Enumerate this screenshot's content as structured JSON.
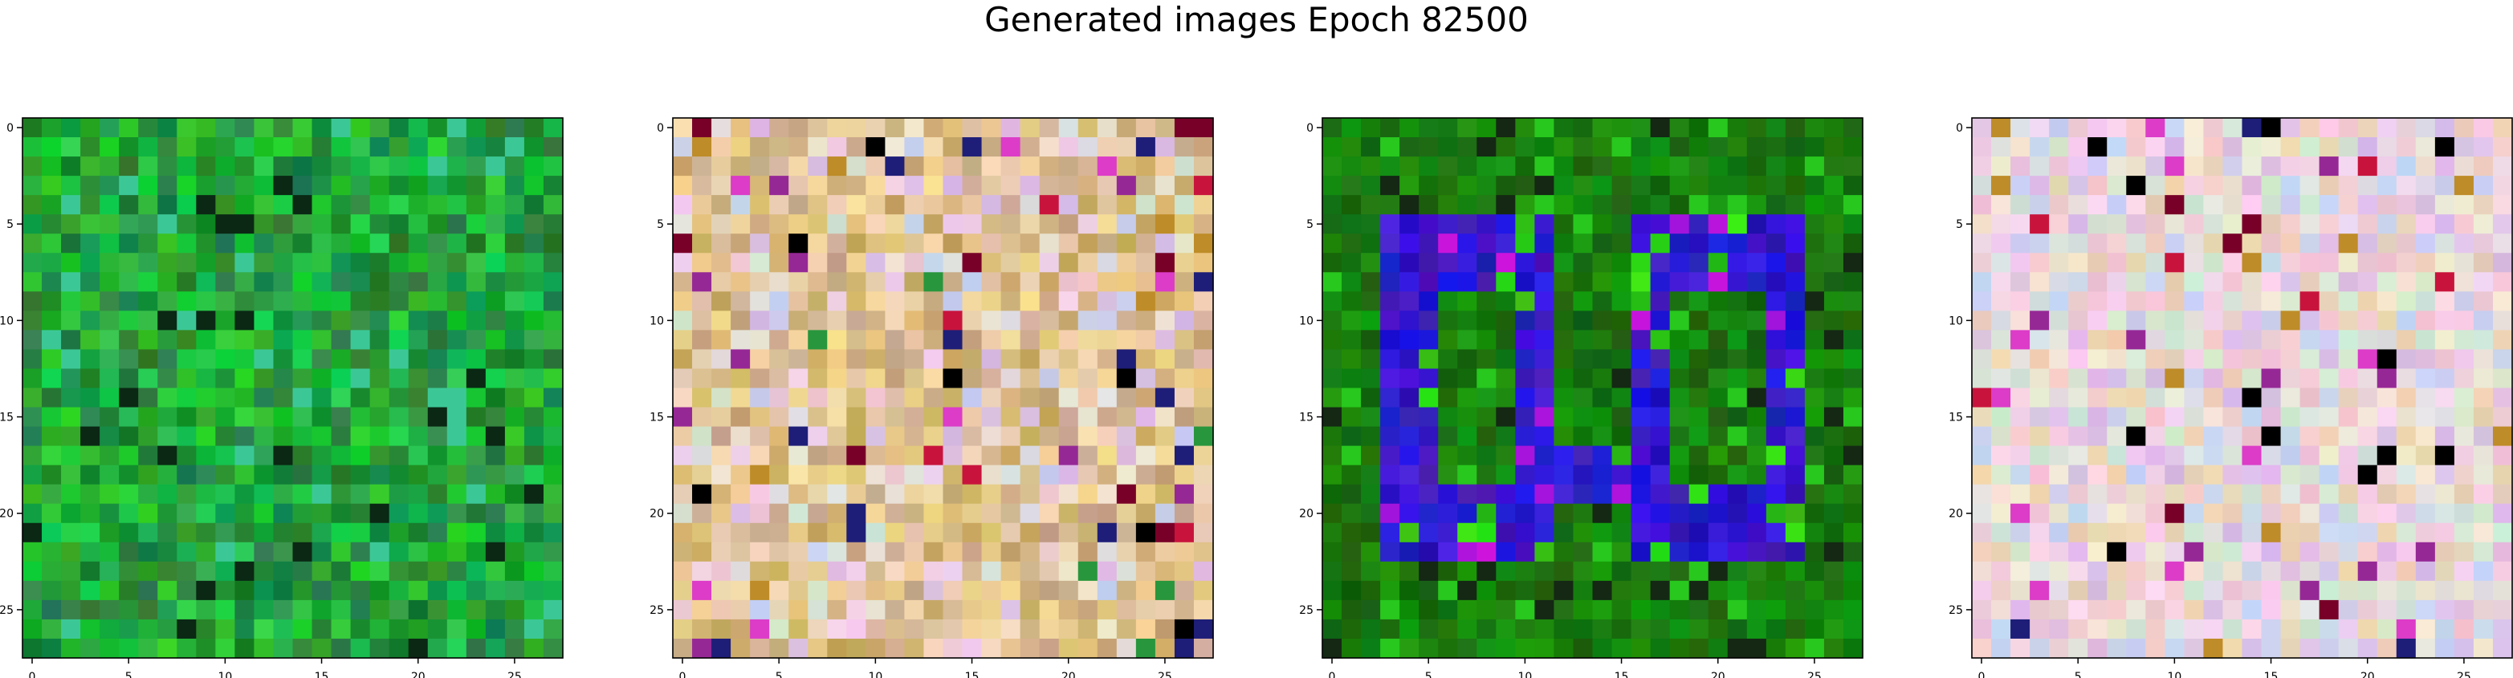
{
  "figure": {
    "title": "Generated images Epoch 82500"
  },
  "chart_data": [
    {
      "type": "heatmap",
      "palette": "green",
      "grid_size": [
        28,
        28
      ],
      "xlim": [
        -0.5,
        27.5
      ],
      "ylim": [
        27.5,
        -0.5
      ],
      "xticks": [
        "0",
        "5",
        "10",
        "15",
        "20",
        "25"
      ],
      "yticks": [
        "0",
        "5",
        "10",
        "15",
        "20",
        "25"
      ],
      "grid": false
    },
    {
      "type": "heatmap",
      "palette": "tan-pastel",
      "grid_size": [
        28,
        28
      ],
      "xlim": [
        -0.5,
        27.5
      ],
      "ylim": [
        27.5,
        -0.5
      ],
      "xticks": [
        "0",
        "5",
        "10",
        "15",
        "20",
        "25"
      ],
      "yticks": [
        "0",
        "5",
        "10",
        "15",
        "20",
        "25"
      ],
      "grid": false
    },
    {
      "type": "heatmap",
      "palette": "green-with-blue-glyph",
      "grid_size": [
        28,
        28
      ],
      "xlim": [
        -0.5,
        27.5
      ],
      "ylim": [
        27.5,
        -0.5
      ],
      "xticks": [
        "0",
        "5",
        "10",
        "15",
        "20",
        "25"
      ],
      "yticks": [
        "0",
        "5",
        "10",
        "15",
        "20",
        "25"
      ],
      "grid": false
    },
    {
      "type": "heatmap",
      "palette": "light-pastel",
      "grid_size": [
        28,
        28
      ],
      "xlim": [
        -0.5,
        27.5
      ],
      "ylim": [
        27.5,
        -0.5
      ],
      "xticks": [
        "0",
        "5",
        "10",
        "15",
        "20",
        "25"
      ],
      "yticks": [
        "0",
        "5",
        "10",
        "15",
        "20",
        "25"
      ],
      "grid": false
    }
  ],
  "colors": {
    "axis": "#000000",
    "background": "#ffffff"
  }
}
